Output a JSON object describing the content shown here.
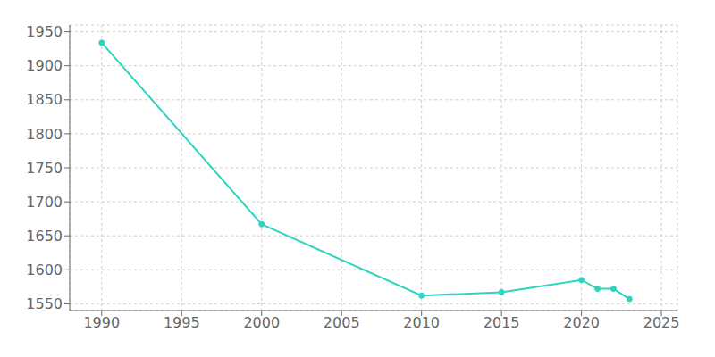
{
  "chart_data": {
    "type": "line",
    "x": [
      1990,
      2000,
      2010,
      2015,
      2020,
      2021,
      2022,
      2023
    ],
    "values": [
      1934,
      1667,
      1562,
      1567,
      1585,
      1572,
      1572,
      1557
    ],
    "color": "#2DD4BF",
    "marker": "circle",
    "xlim": [
      1988,
      2026
    ],
    "ylim": [
      1540,
      1960
    ],
    "xticks": [
      1990,
      1995,
      2000,
      2005,
      2010,
      2015,
      2020,
      2025
    ],
    "yticks": [
      1550,
      1600,
      1650,
      1700,
      1750,
      1800,
      1850,
      1900,
      1950
    ],
    "grid": true
  }
}
